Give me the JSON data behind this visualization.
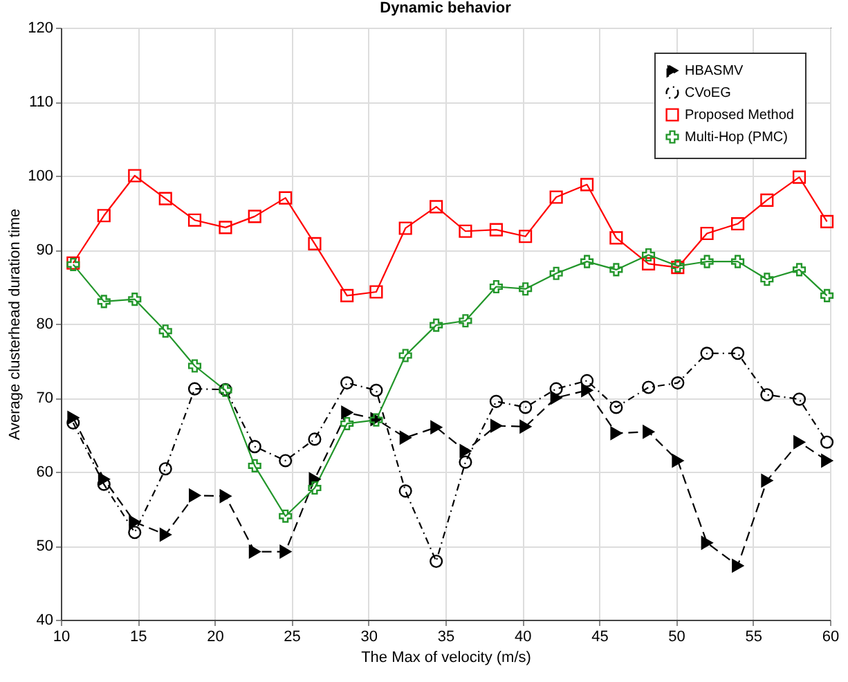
{
  "chart_data": {
    "type": "line",
    "title": "Dynamic behavior",
    "xlabel": "The Max of velocity (m/s)",
    "ylabel": "Average clusterhead duration time",
    "x": [
      10.8,
      12.8,
      14.8,
      16.8,
      18.7,
      20.7,
      22.6,
      24.6,
      26.5,
      28.6,
      30.5,
      32.4,
      34.4,
      36.3,
      38.3,
      40.2,
      42.2,
      44.2,
      46.1,
      48.2,
      50.1,
      52.0,
      54.0,
      55.9,
      58.0,
      59.8
    ],
    "series": [
      {
        "name": "HBASMV",
        "color": "#000000",
        "marker": "triangle",
        "line_style": "dashed",
        "values": [
          67.3,
          59,
          53.2,
          51.5,
          56.8,
          56.7,
          49.2,
          49.2,
          59,
          68,
          67.1,
          64.6,
          66,
          62.8,
          66.2,
          66.1,
          70,
          71,
          65.2,
          65.4,
          61.5,
          50.4,
          47.3,
          58.8,
          64,
          61.5
        ]
      },
      {
        "name": "CVoEG",
        "color": "#000000",
        "marker": "circle",
        "line_style": "dotted",
        "values": [
          66.6,
          58.3,
          51.8,
          60.4,
          71.2,
          71.1,
          63.4,
          61.5,
          64.4,
          72,
          71,
          57.4,
          47.9,
          61.3,
          69.5,
          68.7,
          71.2,
          72.3,
          68.7,
          71.4,
          72,
          76,
          76,
          70.4,
          69.8,
          64
        ]
      },
      {
        "name": "Proposed Method",
        "color": "#ff0000",
        "marker": "square",
        "line_style": "solid",
        "values": [
          88.2,
          94.6,
          100,
          96.9,
          94,
          93,
          94.5,
          97,
          90.8,
          83.8,
          84.3,
          92.9,
          95.8,
          92.5,
          92.7,
          91.8,
          97.1,
          98.8,
          91.6,
          88.1,
          87.6,
          92.2,
          93.5,
          96.7,
          99.8,
          93.8
        ]
      },
      {
        "name": "Multi-Hop (PMC)",
        "color": "#22962a",
        "marker": "cross",
        "line_style": "solid",
        "values": [
          88,
          83,
          83.3,
          79,
          74.3,
          71,
          60.8,
          54,
          57.8,
          66.5,
          67,
          75.7,
          79.8,
          80.4,
          85,
          84.7,
          86.8,
          88.4,
          87.3,
          89.3,
          87.8,
          88.4,
          88.4,
          86,
          87.3,
          83.8
        ]
      }
    ],
    "xlim": [
      10,
      60
    ],
    "xticks": [
      10,
      15,
      20,
      25,
      30,
      35,
      40,
      45,
      50,
      55,
      60
    ],
    "ylim": [
      40,
      120
    ],
    "yticks": [
      40,
      50,
      60,
      70,
      80,
      90,
      100,
      110,
      120
    ],
    "grid": true,
    "legend": "top right"
  }
}
